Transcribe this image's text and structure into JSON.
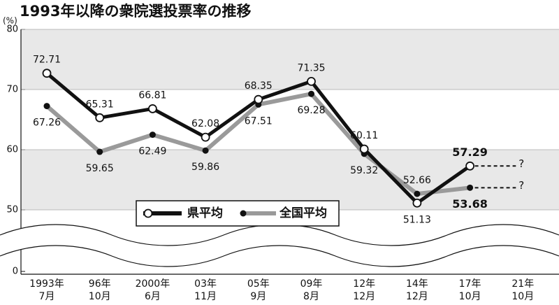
{
  "chart_data": {
    "type": "line",
    "title": "1993年以降の衆院選投票率の推移",
    "y_unit": "(%)",
    "categories": [
      [
        "1993年",
        "7月"
      ],
      [
        "96年",
        "10月"
      ],
      [
        "2000年",
        "6月"
      ],
      [
        "03年",
        "11月"
      ],
      [
        "05年",
        "9月"
      ],
      [
        "09年",
        "8月"
      ],
      [
        "12年",
        "12月"
      ],
      [
        "14年",
        "12月"
      ],
      [
        "17年",
        "10月"
      ],
      [
        "21年",
        "10月"
      ]
    ],
    "series": [
      {
        "name": "県平均",
        "color": "#111111",
        "values": [
          72.71,
          65.31,
          66.81,
          62.08,
          68.35,
          71.35,
          60.11,
          51.13,
          57.29,
          null
        ]
      },
      {
        "name": "全国平均",
        "color": "#9a9a9a",
        "values": [
          67.26,
          59.65,
          62.49,
          59.86,
          67.51,
          69.28,
          59.32,
          52.66,
          53.68,
          null
        ]
      }
    ],
    "annotations": [
      "?",
      "?"
    ],
    "ylim": [
      45,
      80
    ],
    "yticks": [
      0,
      50,
      60,
      70,
      80
    ],
    "axis_break": true,
    "grid_bands": true
  }
}
